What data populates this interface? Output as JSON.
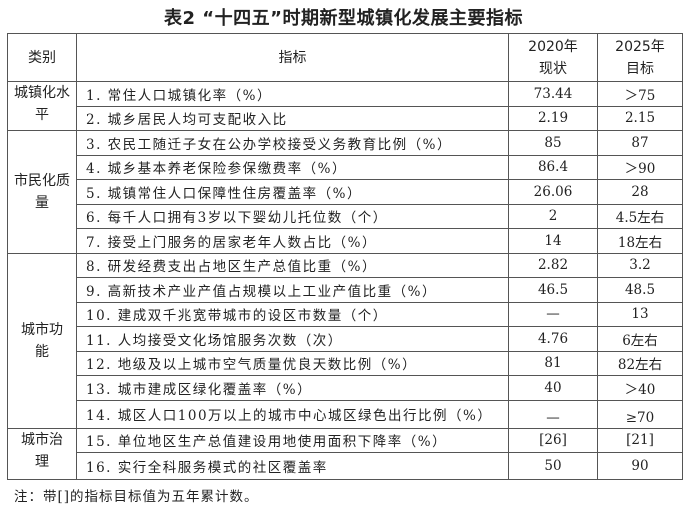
{
  "title": "表2 “十四五”时期新型城镇化发展主要指标",
  "headers": {
    "category": "类别",
    "indicator": "指标",
    "y2020": "2020年现状",
    "y2025": "2025年目标"
  },
  "groups": [
    {
      "category": "城镇化水平",
      "rows": [
        {
          "indicator": "1. 常住人口城镇化率（%）",
          "v2020": "73.44",
          "v2025": "＞75"
        },
        {
          "indicator": "2. 城乡居民人均可支配收入比",
          "v2020": "2.19",
          "v2025": "2.15"
        }
      ]
    },
    {
      "category": "市民化质量",
      "rows": [
        {
          "indicator": "3. 农民工随迁子女在公办学校接受义务教育比例（%）",
          "v2020": "85",
          "v2025": "87"
        },
        {
          "indicator": "4. 城乡基本养老保险参保缴费率（%）",
          "v2020": "86.4",
          "v2025": "＞90"
        },
        {
          "indicator": "5. 城镇常住人口保障性住房覆盖率（%）",
          "v2020": "26.06",
          "v2025": "28"
        },
        {
          "indicator": "6. 每千人口拥有3岁以下婴幼儿托位数（个）",
          "v2020": "2",
          "v2025": "4.5左右"
        },
        {
          "indicator": "7. 接受上门服务的居家老年人数占比（%）",
          "v2020": "14",
          "v2025": "18左右"
        }
      ]
    },
    {
      "category": "城市功能",
      "rows": [
        {
          "indicator": "8. 研发经费支出占地区生产总值比重（%）",
          "v2020": "2.82",
          "v2025": "3.2"
        },
        {
          "indicator": "9. 高新技术产业产值占规模以上工业产值比重（%）",
          "v2020": "46.5",
          "v2025": "48.5"
        },
        {
          "indicator": "10. 建成双千兆宽带城市的设区市数量（个）",
          "v2020": "—",
          "v2025": "13"
        },
        {
          "indicator": "11. 人均接受文化场馆服务次数（次）",
          "v2020": "4.76",
          "v2025": "6左右"
        },
        {
          "indicator": "12. 地级及以上城市空气质量优良天数比例（%）",
          "v2020": "81",
          "v2025": "82左右"
        },
        {
          "indicator": "13. 城市建成区绿化覆盖率（%）",
          "v2020": "40",
          "v2025": "＞40"
        },
        {
          "indicator": "14. 城区人口100万以上的城市中心城区绿色出行比例（%）",
          "v2020": "—",
          "v2025": "≥70"
        }
      ]
    },
    {
      "category": "城市治理",
      "rows": [
        {
          "indicator": "15. 单位地区生产总值建设用地使用面积下降率（%）",
          "v2020": "[26]",
          "v2025": "[21]"
        },
        {
          "indicator": "16. 实行全科服务模式的社区覆盖率",
          "v2020": "50",
          "v2025": "90"
        }
      ]
    }
  ],
  "note": "注：带[]的指标目标值为五年累计数。"
}
